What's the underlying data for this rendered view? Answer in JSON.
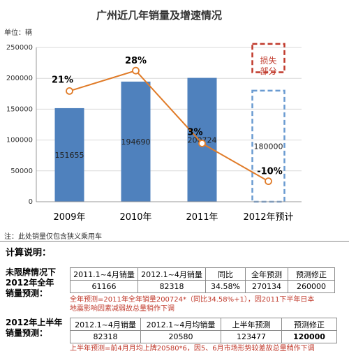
{
  "chart_data": {
    "type": "bar",
    "title": "广州近几年销量及增速情况",
    "unit": "单位：辆",
    "categories": [
      "2009年",
      "2010年",
      "2011年",
      "2012年预计"
    ],
    "values": [
      151655,
      194690,
      200724,
      180000
    ],
    "bar_labels": [
      "151655",
      "194690",
      "200724",
      "180000"
    ],
    "growth": {
      "values": [
        21,
        28,
        3,
        -10
      ],
      "labels": [
        "21%",
        "28%",
        "3%",
        "-10%"
      ]
    },
    "ylim": [
      0,
      250000
    ],
    "yticks": [
      "0",
      "50000",
      "100000",
      "150000",
      "200000",
      "250000"
    ],
    "loss_label": [
      "损失",
      "部分"
    ],
    "colors": {
      "bar": "#4f81bd",
      "line": "#e07b28",
      "loss_box": "#c0392b",
      "forecast_box": "#6a9bd1"
    }
  },
  "note": "注：此处销量仅包含狭义乘用车",
  "calc_title": "计算说明：",
  "section1": {
    "label": [
      "未限牌情况下",
      "2012年全年",
      "销量预测："
    ],
    "headers": [
      "2011.1~4月销量",
      "2012.1~4月销量",
      "同比",
      "全年预测",
      "预测修正"
    ],
    "values": [
      "61166",
      "82318",
      "34.58%",
      "270134",
      "260000"
    ],
    "note": [
      "全年预测=2011年全年销量200724*（同比34.58%+1），因2011下半年日本",
      "地震影响因素减弱故总量稍作下调"
    ]
  },
  "section2": {
    "label": [
      "2012年上半年",
      "销量预测："
    ],
    "headers": [
      "2012.1~4月销量",
      "2012.1~4月均销量",
      "上半年预测",
      "预测修正"
    ],
    "values": [
      "82318",
      "20580",
      "123477",
      "120000"
    ],
    "note": "上半年预测=前4月月均上牌20580*6，因5、6月市场形势较差故总量稍作下调"
  }
}
